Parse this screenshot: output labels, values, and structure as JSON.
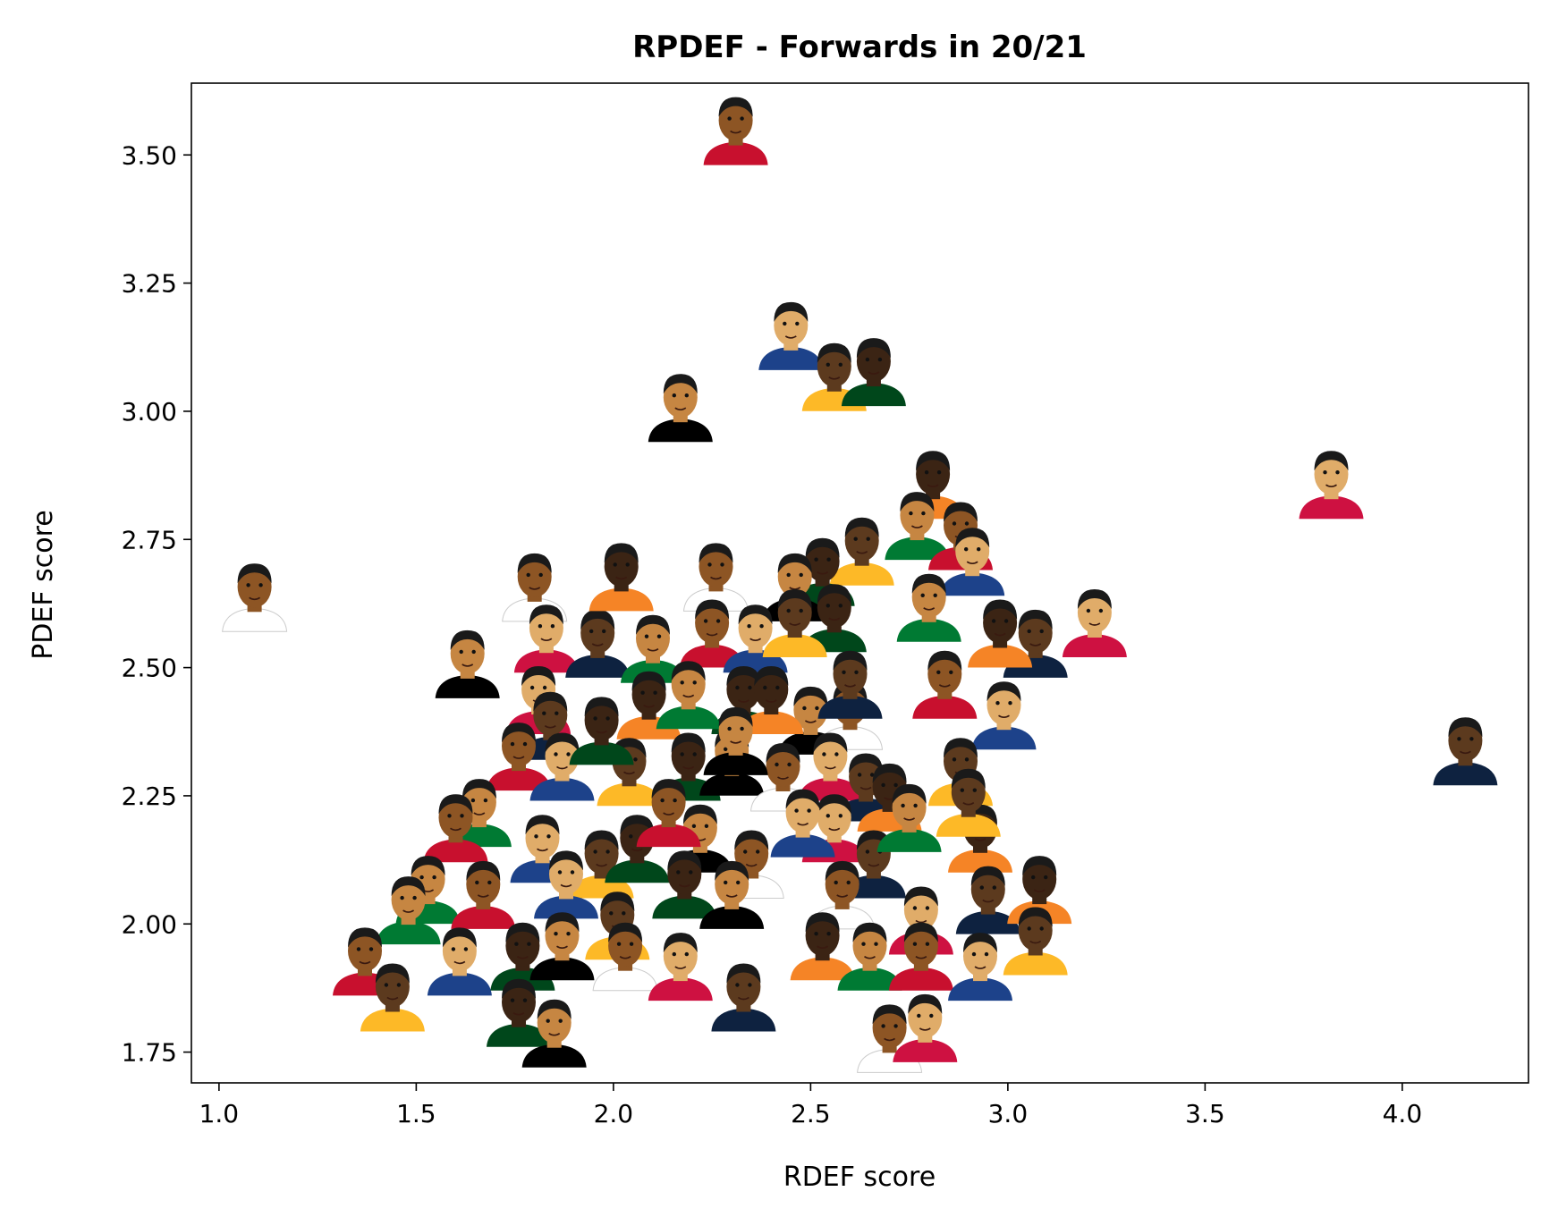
{
  "chart_data": {
    "type": "scatter",
    "title": "RPDEF - Forwards in 20/21",
    "xlabel": "RDEF score",
    "ylabel": "PDEF score",
    "xlim": [
      0.93,
      4.32
    ],
    "ylim": [
      1.69,
      3.64
    ],
    "xticks": [
      1.0,
      1.5,
      2.0,
      2.5,
      3.0,
      3.5,
      4.0
    ],
    "xtick_labels": [
      "1.0",
      "1.5",
      "2.0",
      "2.5",
      "3.0",
      "3.5",
      "4.0"
    ],
    "yticks": [
      1.75,
      2.0,
      2.25,
      2.5,
      2.75,
      3.0,
      3.25,
      3.5
    ],
    "ytick_labels": [
      "1.75",
      "2.00",
      "2.25",
      "2.50",
      "2.75",
      "3.00",
      "3.25",
      "3.50"
    ],
    "grid": false,
    "marker": "player-headshot-icon",
    "points": [
      {
        "x": 2.31,
        "y": 3.55
      },
      {
        "x": 2.45,
        "y": 3.15
      },
      {
        "x": 2.56,
        "y": 3.07
      },
      {
        "x": 2.66,
        "y": 3.08
      },
      {
        "x": 2.17,
        "y": 3.01
      },
      {
        "x": 1.09,
        "y": 2.64
      },
      {
        "x": 3.82,
        "y": 2.86
      },
      {
        "x": 4.16,
        "y": 2.34
      },
      {
        "x": 2.81,
        "y": 2.86
      },
      {
        "x": 2.77,
        "y": 2.78
      },
      {
        "x": 2.88,
        "y": 2.76
      },
      {
        "x": 2.91,
        "y": 2.71
      },
      {
        "x": 2.63,
        "y": 2.73
      },
      {
        "x": 2.53,
        "y": 2.69
      },
      {
        "x": 2.46,
        "y": 2.66
      },
      {
        "x": 2.26,
        "y": 2.68
      },
      {
        "x": 3.22,
        "y": 2.59
      },
      {
        "x": 3.07,
        "y": 2.55
      },
      {
        "x": 2.98,
        "y": 2.57
      },
      {
        "x": 2.8,
        "y": 2.62
      },
      {
        "x": 2.84,
        "y": 2.47
      },
      {
        "x": 2.99,
        "y": 2.41
      },
      {
        "x": 2.88,
        "y": 2.3
      },
      {
        "x": 2.56,
        "y": 2.6
      },
      {
        "x": 1.63,
        "y": 2.51
      },
      {
        "x": 1.8,
        "y": 2.66
      },
      {
        "x": 1.83,
        "y": 2.56
      },
      {
        "x": 1.96,
        "y": 2.55
      },
      {
        "x": 2.02,
        "y": 2.68
      },
      {
        "x": 2.1,
        "y": 2.54
      },
      {
        "x": 2.25,
        "y": 2.57
      },
      {
        "x": 2.36,
        "y": 2.56
      },
      {
        "x": 2.46,
        "y": 2.59
      },
      {
        "x": 2.33,
        "y": 2.44
      },
      {
        "x": 2.5,
        "y": 2.4
      },
      {
        "x": 2.6,
        "y": 2.41
      },
      {
        "x": 1.81,
        "y": 2.44
      },
      {
        "x": 1.84,
        "y": 2.39
      },
      {
        "x": 2.09,
        "y": 2.43
      },
      {
        "x": 2.19,
        "y": 2.45
      },
      {
        "x": 1.76,
        "y": 2.33
      },
      {
        "x": 1.87,
        "y": 2.31
      },
      {
        "x": 2.04,
        "y": 2.3
      },
      {
        "x": 2.19,
        "y": 2.31
      },
      {
        "x": 2.3,
        "y": 2.32
      },
      {
        "x": 2.43,
        "y": 2.29
      },
      {
        "x": 2.55,
        "y": 2.31
      },
      {
        "x": 2.64,
        "y": 2.27
      },
      {
        "x": 2.7,
        "y": 2.25
      },
      {
        "x": 1.66,
        "y": 2.22
      },
      {
        "x": 1.6,
        "y": 2.19
      },
      {
        "x": 1.82,
        "y": 2.15
      },
      {
        "x": 1.97,
        "y": 2.12
      },
      {
        "x": 2.06,
        "y": 2.15
      },
      {
        "x": 2.22,
        "y": 2.17
      },
      {
        "x": 2.35,
        "y": 2.12
      },
      {
        "x": 2.56,
        "y": 2.19
      },
      {
        "x": 2.66,
        "y": 2.12
      },
      {
        "x": 2.93,
        "y": 2.17
      },
      {
        "x": 1.53,
        "y": 2.07
      },
      {
        "x": 1.67,
        "y": 2.06
      },
      {
        "x": 1.88,
        "y": 2.08
      },
      {
        "x": 2.01,
        "y": 2.0
      },
      {
        "x": 2.18,
        "y": 2.08
      },
      {
        "x": 2.3,
        "y": 2.06
      },
      {
        "x": 2.58,
        "y": 2.06
      },
      {
        "x": 2.78,
        "y": 2.01
      },
      {
        "x": 2.95,
        "y": 2.05
      },
      {
        "x": 3.08,
        "y": 2.07
      },
      {
        "x": 1.48,
        "y": 2.03
      },
      {
        "x": 1.37,
        "y": 1.93
      },
      {
        "x": 1.61,
        "y": 1.93
      },
      {
        "x": 1.44,
        "y": 1.86
      },
      {
        "x": 1.77,
        "y": 1.94
      },
      {
        "x": 1.87,
        "y": 1.96
      },
      {
        "x": 2.03,
        "y": 1.94
      },
      {
        "x": 2.17,
        "y": 1.92
      },
      {
        "x": 2.33,
        "y": 1.86
      },
      {
        "x": 2.53,
        "y": 1.96
      },
      {
        "x": 2.65,
        "y": 1.94
      },
      {
        "x": 2.78,
        "y": 1.94
      },
      {
        "x": 2.93,
        "y": 1.92
      },
      {
        "x": 3.07,
        "y": 1.97
      },
      {
        "x": 1.76,
        "y": 1.83
      },
      {
        "x": 1.85,
        "y": 1.79
      },
      {
        "x": 2.7,
        "y": 1.78
      },
      {
        "x": 2.79,
        "y": 1.8
      },
      {
        "x": 2.6,
        "y": 2.47
      },
      {
        "x": 2.4,
        "y": 2.44
      },
      {
        "x": 2.75,
        "y": 2.21
      },
      {
        "x": 2.14,
        "y": 2.22
      },
      {
        "x": 2.48,
        "y": 2.2
      },
      {
        "x": 2.9,
        "y": 2.24
      },
      {
        "x": 1.97,
        "y": 2.38
      },
      {
        "x": 2.31,
        "y": 2.36
      }
    ]
  },
  "colors": {
    "marker_jerseys": [
      "#c8102e",
      "#1d428a",
      "#fdb927",
      "#00471b",
      "#000000",
      "#ffffff",
      "#ce1141",
      "#0e2240",
      "#f58426",
      "#007a33"
    ],
    "marker_skin": [
      "#8d5524",
      "#5c3a1e",
      "#c68642",
      "#e0ac69",
      "#3b2414"
    ],
    "marker_hair": "#1a1a1a"
  }
}
